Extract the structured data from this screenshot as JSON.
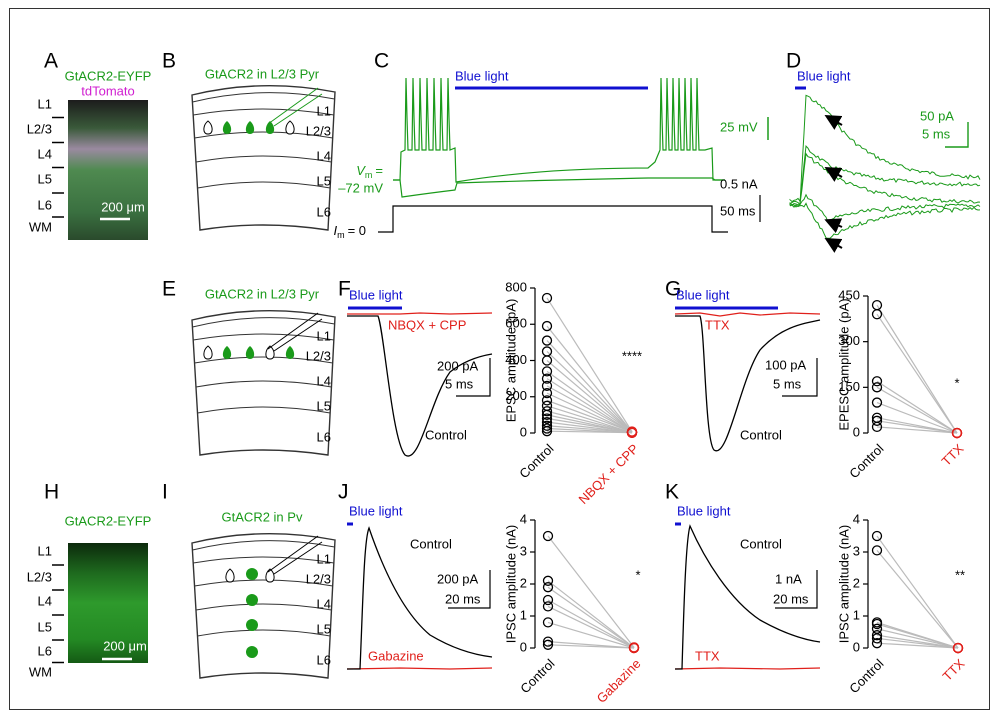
{
  "A": {
    "label": "A",
    "line1": "GtACR2-EYFP",
    "line2": "tdTomato",
    "layers": [
      "L1",
      "L2/3",
      "L4",
      "L5",
      "L6",
      "WM"
    ],
    "scale": "200 μm"
  },
  "B": {
    "label": "B",
    "title": "GtACR2 in L2/3 Pyr",
    "layers": [
      "L1",
      "L2/3",
      "L4",
      "L5",
      "L6"
    ]
  },
  "C": {
    "label": "C",
    "stimulus": "Blue light",
    "v_scale": "25 mV",
    "i_scale": "0.5 nA",
    "t_scale": "50 ms",
    "vm_symbol": "V",
    "vm_sub": "m",
    "vm_equals": "=",
    "vm_value": "–72 mV",
    "im_symbol": "I",
    "im_sub": "m",
    "im_value": "= 0"
  },
  "D": {
    "label": "D",
    "stimulus": "Blue light",
    "y_scale": "50 pA",
    "t_scale": "5 ms"
  },
  "E": {
    "label": "E",
    "title": "GtACR2 in L2/3 Pyr",
    "layers": [
      "L1",
      "L2/3",
      "L4",
      "L5",
      "L6"
    ]
  },
  "F": {
    "label": "F",
    "stimulus": "Blue light",
    "drug_label": "NBQX + CPP",
    "y_scale": "200 pA",
    "t_scale": "5 ms",
    "control_label": "Control",
    "plot": {
      "y_label": "EPSC amplitude (pA)",
      "ylim": [
        0,
        800
      ],
      "yticks": [
        0,
        200,
        400,
        600,
        800
      ],
      "categories": [
        "Control",
        "NBQX + CPP"
      ],
      "colors": [
        "#000000",
        "#e0201b"
      ],
      "control": [
        745,
        590,
        510,
        450,
        400,
        340,
        300,
        260,
        220,
        180,
        150,
        120,
        100,
        80,
        60,
        40,
        25,
        10
      ],
      "treatment": [
        8,
        5,
        6,
        4,
        3,
        5,
        2,
        4,
        3,
        6,
        2,
        3,
        1,
        4,
        2,
        3,
        1,
        2
      ],
      "significance": "****"
    }
  },
  "G": {
    "label": "G",
    "stimulus": "Blue light",
    "drug_label": "TTX",
    "y_scale": "100 pA",
    "t_scale": "5 ms",
    "control_label": "Control",
    "plot": {
      "y_label": "EPESC amplitude (pA)",
      "ylim": [
        0,
        450
      ],
      "yticks": [
        0,
        150,
        300,
        450
      ],
      "categories": [
        "Control",
        "TTX"
      ],
      "colors": [
        "#000000",
        "#e0201b"
      ],
      "control": [
        420,
        390,
        170,
        150,
        100,
        50,
        40,
        20
      ],
      "treatment": [
        0,
        0,
        0,
        0,
        0,
        0,
        0,
        0
      ],
      "significance": "*"
    }
  },
  "H": {
    "label": "H",
    "line1": "GtACR2-EYFP",
    "layers": [
      "L1",
      "L2/3",
      "L4",
      "L5",
      "L6",
      "WM"
    ],
    "scale": "200 μm"
  },
  "I": {
    "label": "I",
    "title": "GtACR2 in Pv",
    "layers": [
      "L1",
      "L2/3",
      "L4",
      "L5",
      "L6"
    ]
  },
  "J": {
    "label": "J",
    "stimulus": "Blue light",
    "drug_label": "Gabazine",
    "y_scale": "200 pA",
    "t_scale": "20 ms",
    "control_label": "Control",
    "plot": {
      "y_label": "IPSC amplitude (nA)",
      "ylim": [
        0,
        4
      ],
      "yticks": [
        0,
        1,
        2,
        3,
        4
      ],
      "categories": [
        "Control",
        "Gabazine"
      ],
      "colors": [
        "#000000",
        "#e0201b"
      ],
      "control": [
        3.5,
        2.1,
        1.9,
        1.5,
        1.3,
        0.8,
        0.2,
        0.1
      ],
      "treatment": [
        0.02,
        0.01,
        0.01,
        0.01,
        0,
        0,
        0,
        0
      ],
      "significance": "*"
    }
  },
  "K": {
    "label": "K",
    "stimulus": "Blue light",
    "drug_label": "TTX",
    "y_scale": "1 nA",
    "t_scale": "20 ms",
    "control_label": "Control",
    "plot": {
      "y_label": "IPSC amplitude (nA)",
      "ylim": [
        0,
        4
      ],
      "yticks": [
        0,
        1,
        2,
        3,
        4
      ],
      "categories": [
        "Control",
        "TTX"
      ],
      "colors": [
        "#000000",
        "#e0201b"
      ],
      "control": [
        3.5,
        3.05,
        0.8,
        0.75,
        0.6,
        0.4,
        0.3,
        0.15
      ],
      "treatment": [
        0,
        0,
        0,
        0,
        0,
        0,
        0,
        0
      ],
      "significance": "**"
    }
  }
}
